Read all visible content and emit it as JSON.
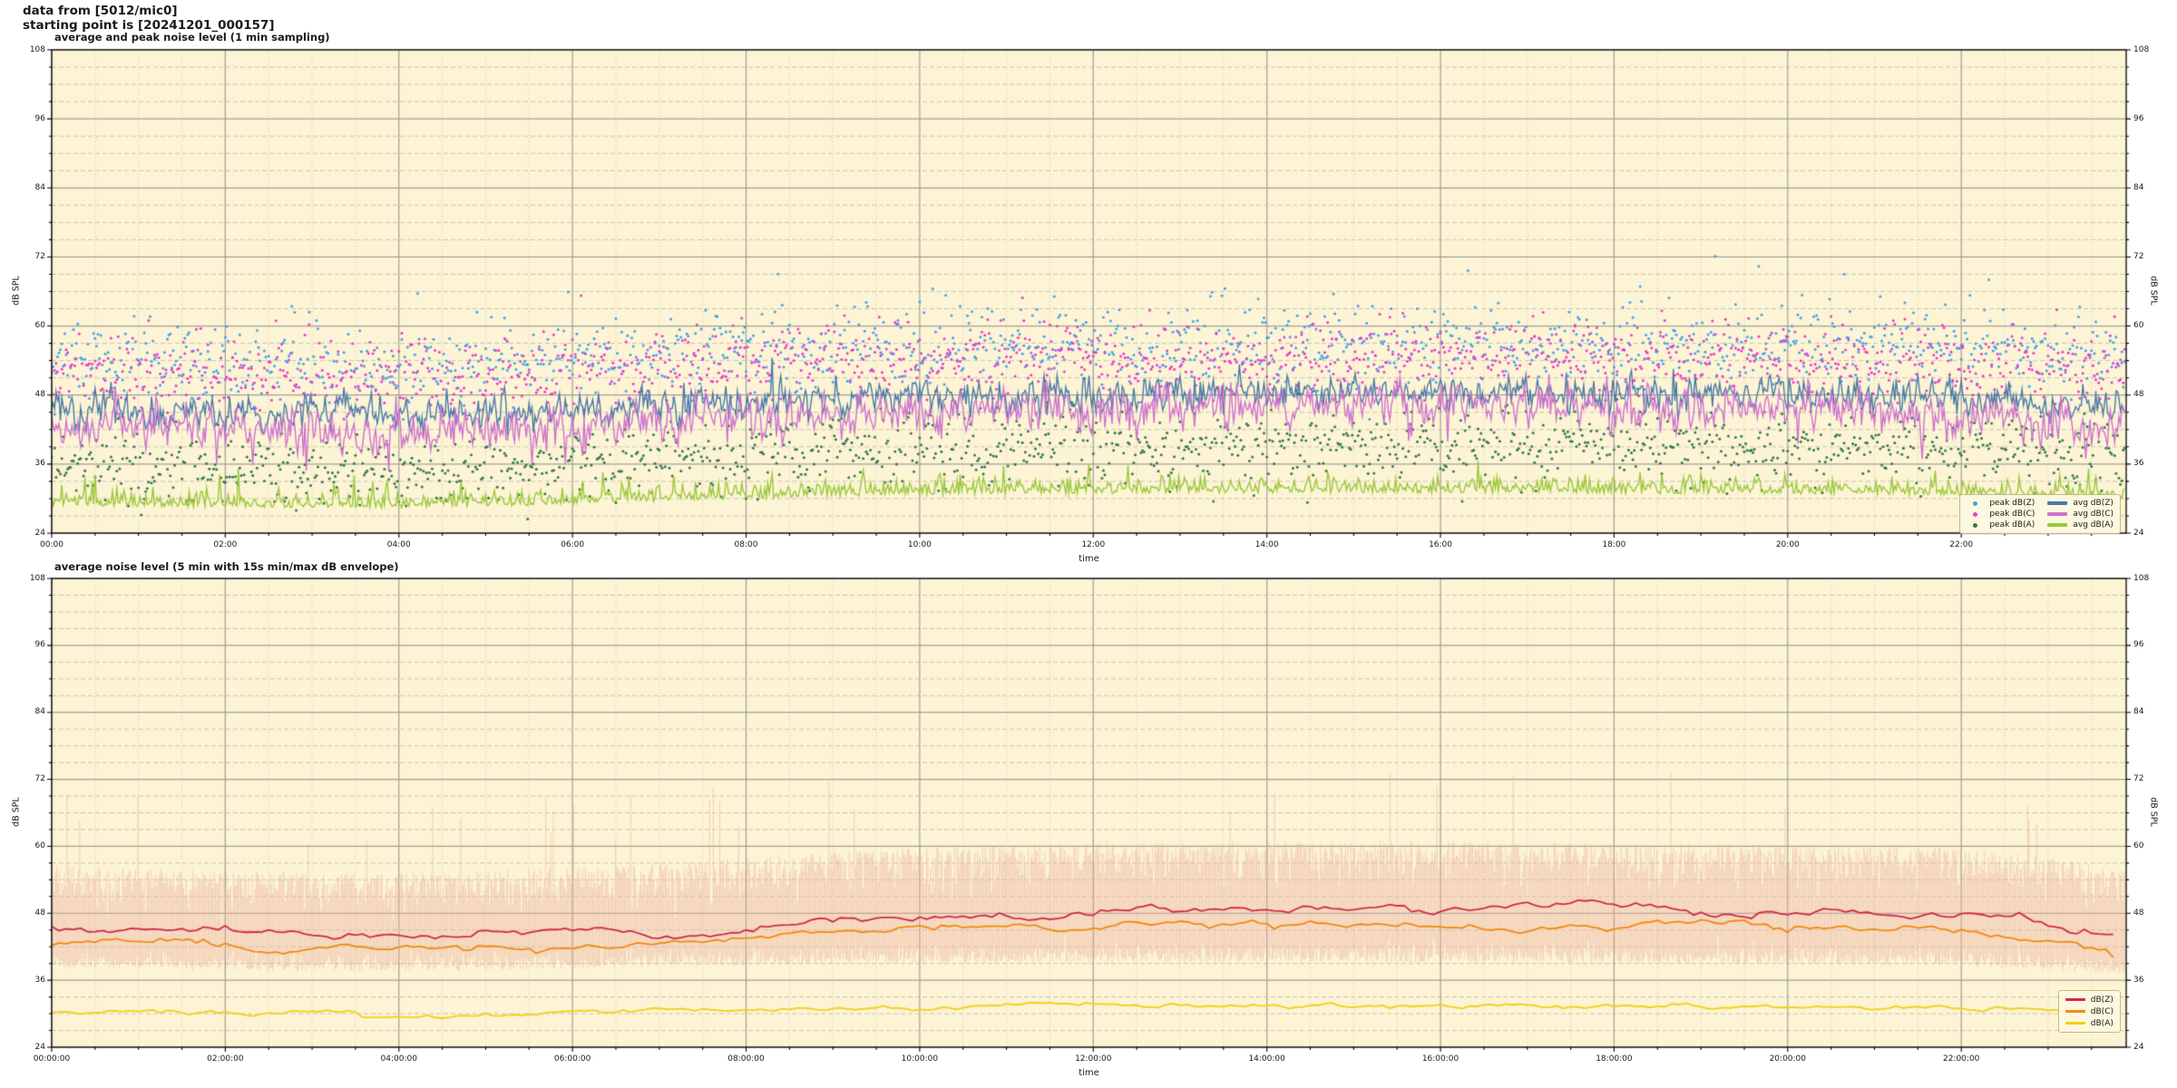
{
  "header": {
    "line1": "data from [5012/mic0]",
    "line2": "starting point is [20241201_000157]"
  },
  "style": {
    "plot_bg": "#fcf4d4",
    "grid_major": "#a39f98",
    "grid_minor_h": "#c3c0b6",
    "grid_minor_v": "#c8c4b6",
    "spine": "#000000",
    "legend_bg": "#fdf8e1",
    "legend_border": "#c9b784"
  },
  "chart_data": [
    {
      "type": "scatter+line",
      "title": "average and peak noise level (1 min sampling)",
      "xlabel": "time",
      "ylabel": "dB SPL",
      "ylim": [
        24,
        108
      ],
      "yticks": [
        24,
        36,
        48,
        60,
        72,
        84,
        96,
        108
      ],
      "ytick_minor_step": 3,
      "xlim_hours": [
        0,
        23.9
      ],
      "xtick_minor_step_hours": 0.5,
      "grid": "on",
      "legend_position": "lower right",
      "sample_step_minutes": 1,
      "trend_hours_step": 1,
      "xticks": [
        {
          "hour": 0,
          "label": "00:00"
        },
        {
          "hour": 2,
          "label": "02:00"
        },
        {
          "hour": 4,
          "label": "04:00"
        },
        {
          "hour": 6,
          "label": "06:00"
        },
        {
          "hour": 8,
          "label": "08:00"
        },
        {
          "hour": 10,
          "label": "10:00"
        },
        {
          "hour": 12,
          "label": "12:00"
        },
        {
          "hour": 14,
          "label": "14:00"
        },
        {
          "hour": 16,
          "label": "16:00"
        },
        {
          "hour": 18,
          "label": "18:00"
        },
        {
          "hour": 20,
          "label": "20:00"
        },
        {
          "hour": 22,
          "label": "22:00"
        }
      ],
      "scatter_series": [
        {
          "name": "peak dB(Z)",
          "color": "#47a0ea",
          "spread": 3.4,
          "outlier_prob": 0.012,
          "outlier_amp": 13,
          "trend": [
            54.5,
            54,
            53.6,
            53.3,
            53.3,
            53.7,
            54.2,
            55,
            55.6,
            56,
            56.3,
            56.5,
            56.6,
            56.7,
            56.7,
            56.7,
            56.7,
            56.6,
            56.5,
            56.4,
            56.3,
            56,
            55.8,
            55.3,
            55
          ]
        },
        {
          "name": "peak dB(C)",
          "color": "#e93ccb",
          "spread": 3.2,
          "outlier_prob": 0.01,
          "outlier_amp": 11,
          "trend": [
            52.5,
            52,
            51.6,
            51.3,
            51.3,
            51.7,
            52.2,
            52.8,
            53.3,
            53.7,
            54,
            54.2,
            54.3,
            54.4,
            54.4,
            54.4,
            54.4,
            54.3,
            54.2,
            54.1,
            54,
            53.8,
            53.6,
            53.1,
            52.8
          ]
        },
        {
          "name": "peak dB(A)",
          "color": "#35784f",
          "spread": 3.0,
          "outlier_prob": 0.01,
          "outlier_amp": 9,
          "trend": [
            36,
            35.6,
            35.3,
            35,
            35,
            35.4,
            36,
            36.8,
            37.6,
            38.2,
            38.6,
            38.9,
            39.1,
            39.2,
            39.2,
            39.2,
            39.2,
            39.1,
            39,
            38.9,
            38.8,
            38.6,
            38.3,
            37.8,
            37.4
          ]
        }
      ],
      "line_series": [
        {
          "name": "avg dB(Z)",
          "color": "#4a7aa8",
          "noise": 1.5,
          "spike_prob": 0.02,
          "spike_amp": 4,
          "spike_dir": 1,
          "halfnormal": false,
          "trend": [
            46,
            45.4,
            44.9,
            44.6,
            44.6,
            44.9,
            45.3,
            46,
            46.8,
            47.2,
            47.5,
            47.8,
            48,
            48.2,
            48.3,
            48.3,
            48.3,
            48.2,
            48.1,
            48,
            48,
            47.8,
            47.3,
            46.3,
            45.6
          ]
        },
        {
          "name": "avg dB(C)",
          "color": "#cf72cf",
          "noise": 1.8,
          "spike_prob": 0.025,
          "spike_amp": 4,
          "spike_dir": -1,
          "halfnormal": false,
          "trend": [
            43,
            42.4,
            41.9,
            41.7,
            41.7,
            42,
            42.5,
            43.2,
            44,
            44.5,
            45,
            45.4,
            45.7,
            46,
            46.1,
            46.2,
            46.1,
            46,
            46,
            45.9,
            45.7,
            45.3,
            44.6,
            43,
            42.2
          ]
        },
        {
          "name": "avg dB(A)",
          "color": "#9cc83c",
          "noise": 1.1,
          "spike_prob": 0.03,
          "spike_amp": 4,
          "spike_dir": 1,
          "halfnormal": true,
          "trend": [
            29.3,
            29.1,
            29,
            28.9,
            28.9,
            29.1,
            29.5,
            30,
            30.5,
            30.9,
            31.1,
            31.3,
            31.4,
            31.5,
            31.5,
            31.5,
            31.5,
            31.4,
            31.4,
            31.3,
            31.3,
            31.2,
            31,
            30.7,
            30.5
          ]
        }
      ],
      "legend_items": [
        {
          "label": "peak dB(Z)",
          "swatch": "dot",
          "color": "#47a0ea"
        },
        {
          "label": "peak dB(C)",
          "swatch": "dot",
          "color": "#e93ccb"
        },
        {
          "label": "peak dB(A)",
          "swatch": "dot",
          "color": "#35784f"
        },
        {
          "label": "avg dB(Z)",
          "swatch": "line",
          "color": "#4a7aa8"
        },
        {
          "label": "avg dB(C)",
          "swatch": "line",
          "color": "#cf72cf"
        },
        {
          "label": "avg dB(A)",
          "swatch": "line",
          "color": "#9cc83c"
        }
      ]
    },
    {
      "type": "line+envelope",
      "title": "average noise level (5 min with 15s min/max dB envelope)",
      "xlabel": "time",
      "ylabel": "dB SPL",
      "ylim": [
        24,
        108
      ],
      "yticks": [
        24,
        36,
        48,
        60,
        72,
        84,
        96,
        108
      ],
      "ytick_minor_step": 3,
      "xlim_hours": [
        0,
        23.9
      ],
      "xtick_minor_step_hours": 0.5,
      "grid": "on",
      "legend_position": "lower right",
      "sample_step_minutes": 5,
      "trend_hours_step": 1,
      "xticks": [
        {
          "hour": 0,
          "label": "00:00:00"
        },
        {
          "hour": 2,
          "label": "02:00:00"
        },
        {
          "hour": 4,
          "label": "04:00:00"
        },
        {
          "hour": 6,
          "label": "06:00:00"
        },
        {
          "hour": 8,
          "label": "08:00:00"
        },
        {
          "hour": 10,
          "label": "10:00:00"
        },
        {
          "hour": 12,
          "label": "12:00:00"
        },
        {
          "hour": 14,
          "label": "14:00:00"
        },
        {
          "hour": 16,
          "label": "16:00:00"
        },
        {
          "hour": 18,
          "label": "18:00:00"
        },
        {
          "hour": 20,
          "label": "20:00:00"
        },
        {
          "hour": 22,
          "label": "22:00:00"
        }
      ],
      "envelope": {
        "name": "15s min/max dB envelope",
        "color": "#eeaf9f",
        "alpha": 0.5,
        "spike_prob": 0.012,
        "spike_amp": 9,
        "upper_trend": [
          56.5,
          56,
          55.6,
          55.3,
          55.3,
          55.7,
          56.2,
          57,
          58,
          59,
          59.8,
          60.4,
          60.8,
          61,
          61,
          61,
          61,
          60.9,
          60.8,
          60.6,
          60.5,
          60.2,
          59.8,
          58,
          55.5
        ],
        "lower_trend": [
          38.3,
          38,
          37.8,
          37.6,
          37.6,
          37.8,
          38.1,
          38.4,
          38.7,
          38.9,
          39,
          39.1,
          39.2,
          39.2,
          39.2,
          39.2,
          39.2,
          39.1,
          39,
          39,
          38.9,
          38.8,
          38.6,
          37.8,
          37
        ]
      },
      "line_series": [
        {
          "name": "dB(Z)",
          "color": "#d42848",
          "noise": 0.3,
          "smooth": 0.88,
          "jitter": 0.12,
          "trend": [
            45.4,
            45,
            44.5,
            44,
            44,
            44.3,
            44.8,
            45.4,
            46,
            46.5,
            47,
            47.7,
            48.2,
            48.4,
            48.7,
            48.8,
            48.6,
            48.5,
            48.5,
            48.5,
            48.4,
            48.1,
            47.6,
            45.8,
            42.8
          ]
        },
        {
          "name": "dB(C)",
          "color": "#f28a12",
          "noise": 0.3,
          "smooth": 0.88,
          "jitter": 0.12,
          "trend": [
            42.9,
            42.5,
            42,
            41.6,
            41.6,
            41.9,
            42.4,
            43,
            43.6,
            44.1,
            44.6,
            45.3,
            45.8,
            46,
            46.3,
            46.4,
            46.2,
            46.1,
            46.1,
            46.1,
            46,
            45.7,
            45.1,
            43.2,
            40.5
          ]
        },
        {
          "name": "dB(A)",
          "color": "#f3cf14",
          "noise": 0.18,
          "smooth": 0.85,
          "jitter": 0.08,
          "trend": [
            30.3,
            30.2,
            30.1,
            30,
            30,
            30.1,
            30.3,
            30.6,
            30.9,
            31.1,
            31.3,
            31.4,
            31.5,
            31.5,
            31.5,
            31.5,
            31.5,
            31.4,
            31.4,
            31.3,
            31.3,
            31.2,
            31.1,
            30.8,
            30.6
          ]
        }
      ],
      "legend_items": [
        {
          "label": "dB(Z)",
          "swatch": "line",
          "color": "#d42848"
        },
        {
          "label": "dB(C)",
          "swatch": "line",
          "color": "#f28a12"
        },
        {
          "label": "dB(A)",
          "swatch": "line",
          "color": "#f3cf14"
        }
      ]
    }
  ]
}
